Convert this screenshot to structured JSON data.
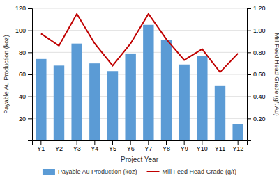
{
  "chart_data": {
    "type": "bar",
    "categories": [
      "Y1",
      "Y2",
      "Y3",
      "Y4",
      "Y5",
      "Y6",
      "Y7",
      "Y8",
      "Y9",
      "Y10",
      "Y11",
      "Y12"
    ],
    "series": [
      {
        "name": "Payable Au Production (koz)",
        "type": "bar",
        "color": "#5B9BD5",
        "values": [
          74,
          68,
          88,
          70,
          63,
          79,
          105,
          91,
          69,
          77,
          50,
          15
        ]
      },
      {
        "name": "Mill Feed Head Grade (g/t)",
        "type": "line",
        "color": "#C00000",
        "axis": "y2",
        "values": [
          0.97,
          0.86,
          1.15,
          0.88,
          0.68,
          0.88,
          1.15,
          0.92,
          0.73,
          0.83,
          0.62,
          0.79
        ]
      }
    ],
    "xlabel": "Project Year",
    "ylabel": "Payable Au Production (koz)",
    "y2label": "Mill Feed Head Grade (g/t Au)",
    "ylim": [
      0,
      120
    ],
    "yticks": [
      20,
      40,
      60,
      80,
      100,
      120
    ],
    "y2lim": [
      0,
      1.2
    ],
    "y2ticks": [
      {
        "value": 0.2,
        "label": "0.20"
      },
      {
        "value": 0.4,
        "label": "0.40"
      },
      {
        "value": 0.6,
        "label": "0.60"
      },
      {
        "value": 0.8,
        "label": "0.80"
      },
      {
        "value": 1,
        "label": "1.00"
      },
      {
        "value": 1.2,
        "label": "1.20"
      }
    ],
    "grid": true,
    "legend": "bottom"
  }
}
